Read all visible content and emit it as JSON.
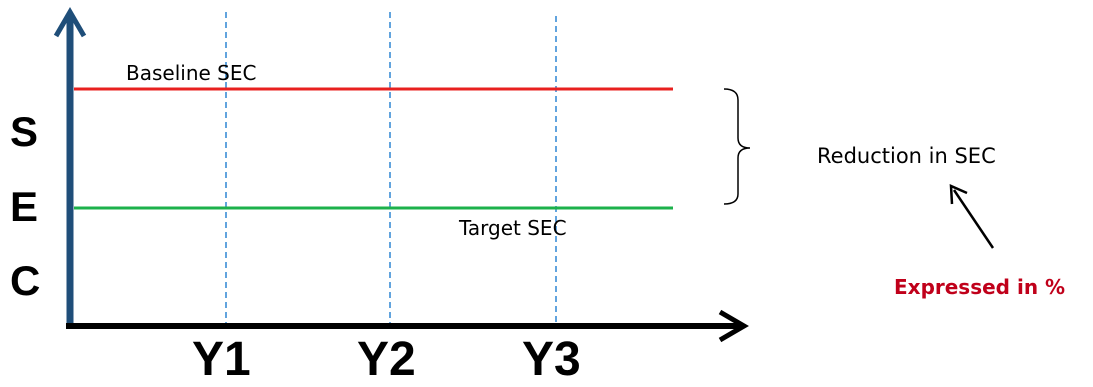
{
  "diagram": {
    "y_axis_letters": [
      "S",
      "E",
      "C"
    ],
    "x_ticks": [
      "Y1",
      "Y2",
      "Y3"
    ],
    "baseline_label": "Baseline SEC",
    "target_label": "Target SEC",
    "brace_label": "Reduction in SEC",
    "note_label": "Expressed in %"
  },
  "colors": {
    "axis_y": "#1f4e79",
    "axis_x": "#000000",
    "baseline_line": "#e8201f",
    "target_line": "#1db14b",
    "dashed_guides": "#2e86d4",
    "note_text": "#c0001a"
  }
}
